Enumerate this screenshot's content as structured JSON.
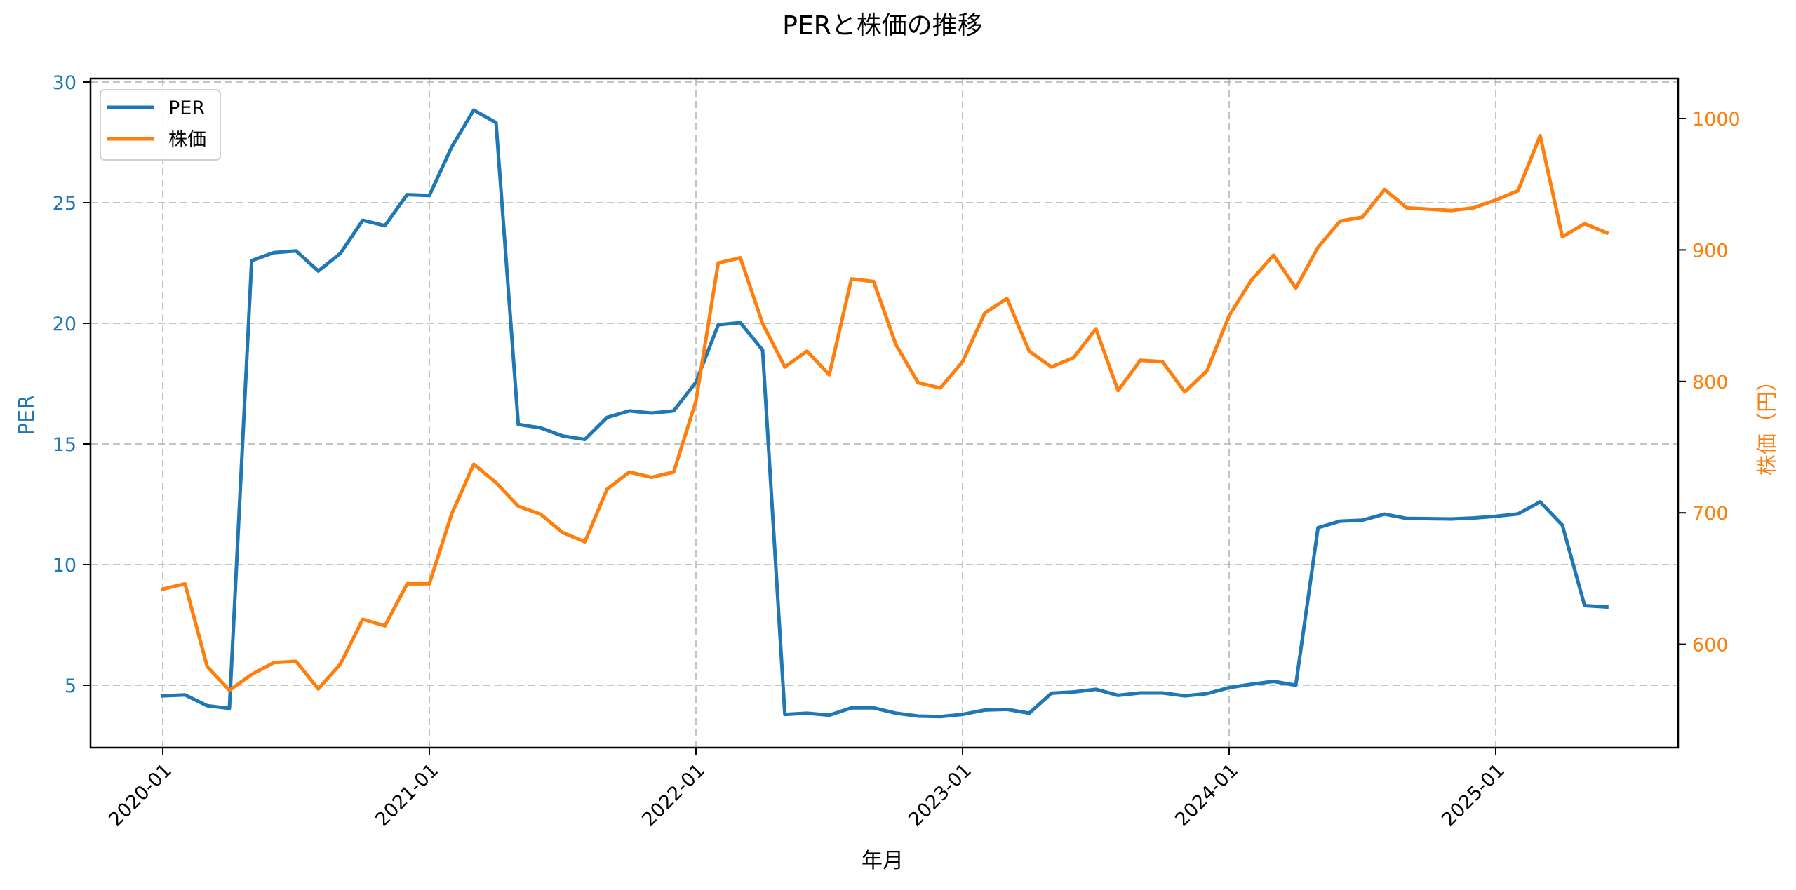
{
  "chart_data": {
    "type": "line",
    "title": "PERと株価の推移",
    "xlabel": "年月",
    "ylabel_left": "PER",
    "ylabel_right": "株価（円）",
    "x_tick_labels": [
      "2020-01",
      "2021-01",
      "2022-01",
      "2023-01",
      "2024-01",
      "2025-01"
    ],
    "y_left_ticks": [
      5,
      10,
      15,
      20,
      25,
      30
    ],
    "y_right_ticks": [
      600,
      700,
      800,
      900,
      1000
    ],
    "y_left_range": [
      2.4,
      30.1
    ],
    "y_right_range": [
      520,
      1030
    ],
    "grid": true,
    "legend_position": "upper left",
    "x": [
      "2020-01",
      "2020-02",
      "2020-03",
      "2020-04",
      "2020-05",
      "2020-06",
      "2020-07",
      "2020-08",
      "2020-09",
      "2020-10",
      "2020-11",
      "2020-12",
      "2021-01",
      "2021-02",
      "2021-03",
      "2021-04",
      "2021-05",
      "2021-06",
      "2021-07",
      "2021-08",
      "2021-09",
      "2021-10",
      "2021-11",
      "2021-12",
      "2022-01",
      "2022-02",
      "2022-03",
      "2022-04",
      "2022-05",
      "2022-06",
      "2022-07",
      "2022-08",
      "2022-09",
      "2022-10",
      "2022-11",
      "2022-12",
      "2023-01",
      "2023-02",
      "2023-03",
      "2023-04",
      "2023-05",
      "2023-06",
      "2023-07",
      "2023-08",
      "2023-09",
      "2023-10",
      "2023-11",
      "2023-12",
      "2024-01",
      "2024-02",
      "2024-03",
      "2024-04",
      "2024-05",
      "2024-06",
      "2024-07",
      "2024-08",
      "2024-09",
      "2024-10",
      "2024-11",
      "2024-12",
      "2025-01",
      "2025-02",
      "2025-03",
      "2025-04",
      "2025-05",
      "2025-06"
    ],
    "series": [
      {
        "name": "PER",
        "axis": "left",
        "color": "#1f77b4",
        "values": [
          4.56,
          4.6,
          4.15,
          4.04,
          22.6,
          22.93,
          23.0,
          22.17,
          22.9,
          24.27,
          24.05,
          25.33,
          25.3,
          27.3,
          28.84,
          28.32,
          15.81,
          15.67,
          15.33,
          15.19,
          16.1,
          16.37,
          16.28,
          16.37,
          17.56,
          19.94,
          20.03,
          18.89,
          3.79,
          3.84,
          3.76,
          4.06,
          4.06,
          3.84,
          3.72,
          3.7,
          3.79,
          3.97,
          4.0,
          3.84,
          4.67,
          4.72,
          4.83,
          4.58,
          4.68,
          4.68,
          4.56,
          4.65,
          4.9,
          5.04,
          5.16,
          5.0,
          11.53,
          11.8,
          11.84,
          12.09,
          11.91,
          11.9,
          11.89,
          11.93,
          12.0,
          12.1,
          12.6,
          11.63,
          8.3,
          8.24
        ]
      },
      {
        "name": "株価",
        "axis": "right",
        "color": "#ff7f0e",
        "values": [
          642,
          646,
          583,
          565,
          577,
          586,
          587,
          566,
          585,
          619,
          614,
          646,
          646,
          699,
          737,
          723,
          705,
          699,
          685,
          678,
          718,
          731,
          727,
          731,
          785,
          890,
          894,
          844,
          811,
          823,
          805,
          878,
          876,
          828,
          799,
          795,
          815,
          852,
          863,
          823,
          811,
          818,
          840,
          793,
          816,
          815,
          792,
          808,
          850,
          877,
          896,
          871,
          902,
          922,
          925,
          946,
          932,
          931,
          930,
          932,
          938,
          945,
          987,
          910,
          920,
          913
        ]
      }
    ]
  },
  "legend": {
    "items": [
      {
        "label": "PER",
        "color": "#1f77b4"
      },
      {
        "label": "株価",
        "color": "#ff7f0e"
      }
    ]
  },
  "colors": {
    "left_axis": "#1f77b4",
    "right_axis": "#ff7f0e",
    "grid": "#b0b0b0"
  }
}
